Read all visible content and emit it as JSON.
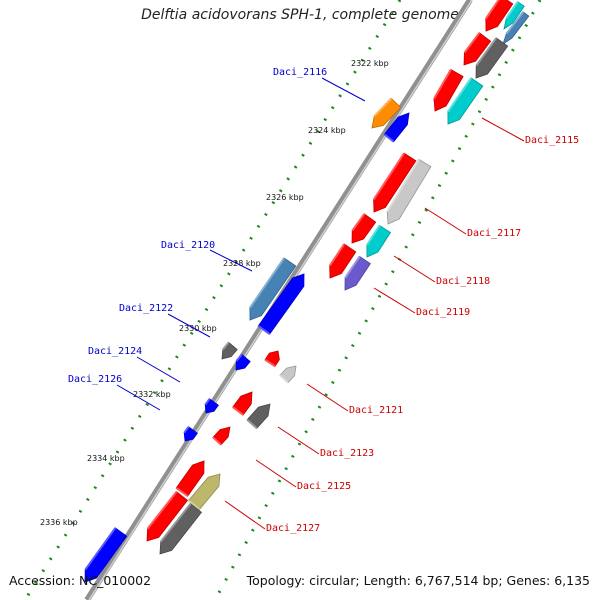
{
  "title": "Delftia acidovorans SPH-1, complete genome",
  "accession": "Accession: NC_010002",
  "topology": "Topology: circular; Length: 6,767,514 bp; Genes: 6,135",
  "colors": {
    "backbone": "#808080",
    "dots": "#1b8a1b",
    "forward_label": "#0000cc",
    "reverse_label": "#cc0000",
    "blue": "#0000ff",
    "steelblue": "#4682b4",
    "orange": "#ff8c00",
    "red": "#ff0000",
    "cyan": "#00cccc",
    "darkgray": "#606060",
    "lightgray": "#c8c8c8",
    "slateblue": "#6a5acd",
    "khaki": "#bdb76b"
  },
  "kbp_ticks": [
    "2322 kbp",
    "2324 kbp",
    "2326 kbp",
    "2328 kbp",
    "2330 kbp",
    "2332 kbp",
    "2334 kbp",
    "2336 kbp"
  ],
  "gene_labels": {
    "Daci_2115": "Daci_2115",
    "Daci_2116": "Daci_2116",
    "Daci_2117": "Daci_2117",
    "Daci_2118": "Daci_2118",
    "Daci_2119": "Daci_2119",
    "Daci_2120": "Daci_2120",
    "Daci_2121": "Daci_2121",
    "Daci_2122": "Daci_2122",
    "Daci_2123": "Daci_2123",
    "Daci_2124": "Daci_2124",
    "Daci_2125": "Daci_2125",
    "Daci_2126": "Daci_2126",
    "Daci_2127": "Daci_2127"
  }
}
